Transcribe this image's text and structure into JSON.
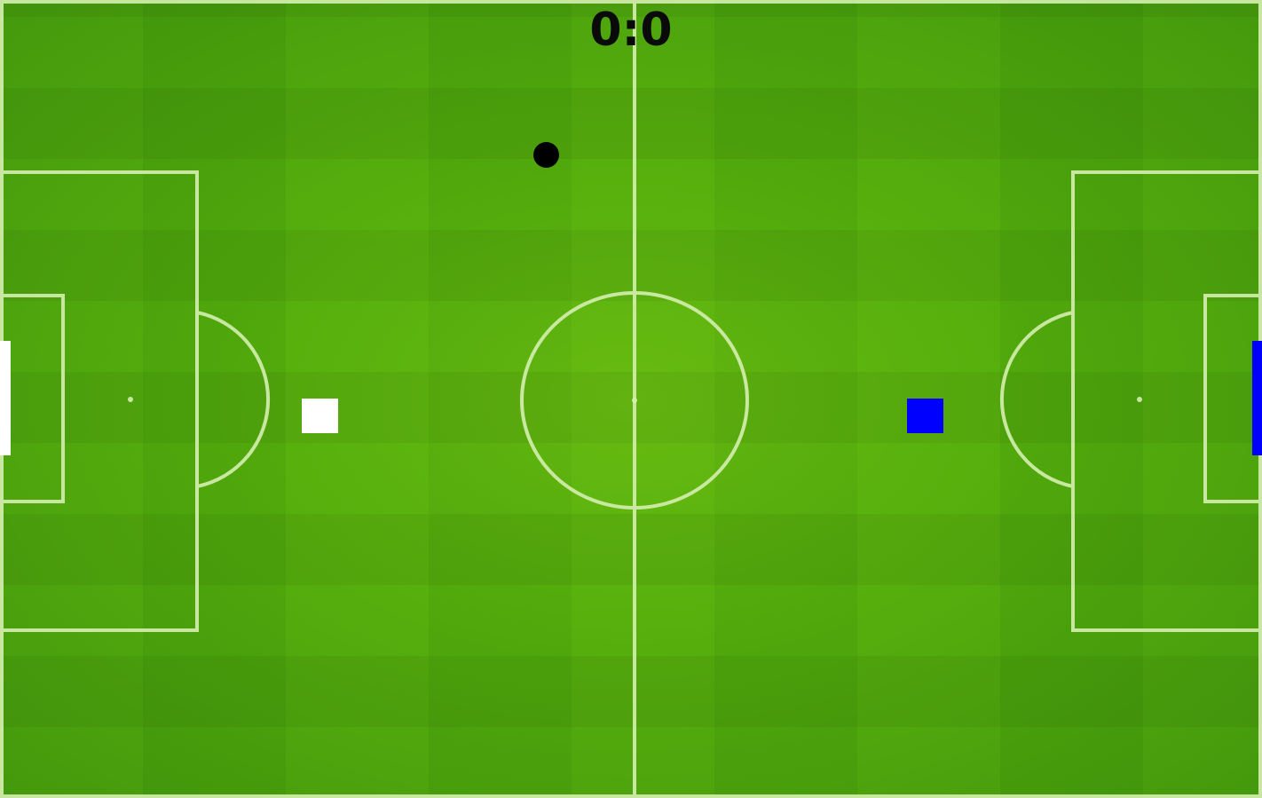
{
  "scoreboard": {
    "text": "0:0"
  },
  "teams": {
    "left": {
      "color": "#ffffff"
    },
    "right": {
      "color": "#0000ff"
    }
  },
  "field": {
    "grass_color": "#53ab0e",
    "line_color": "#d6efb0"
  },
  "ball": {
    "color": "#000000"
  }
}
